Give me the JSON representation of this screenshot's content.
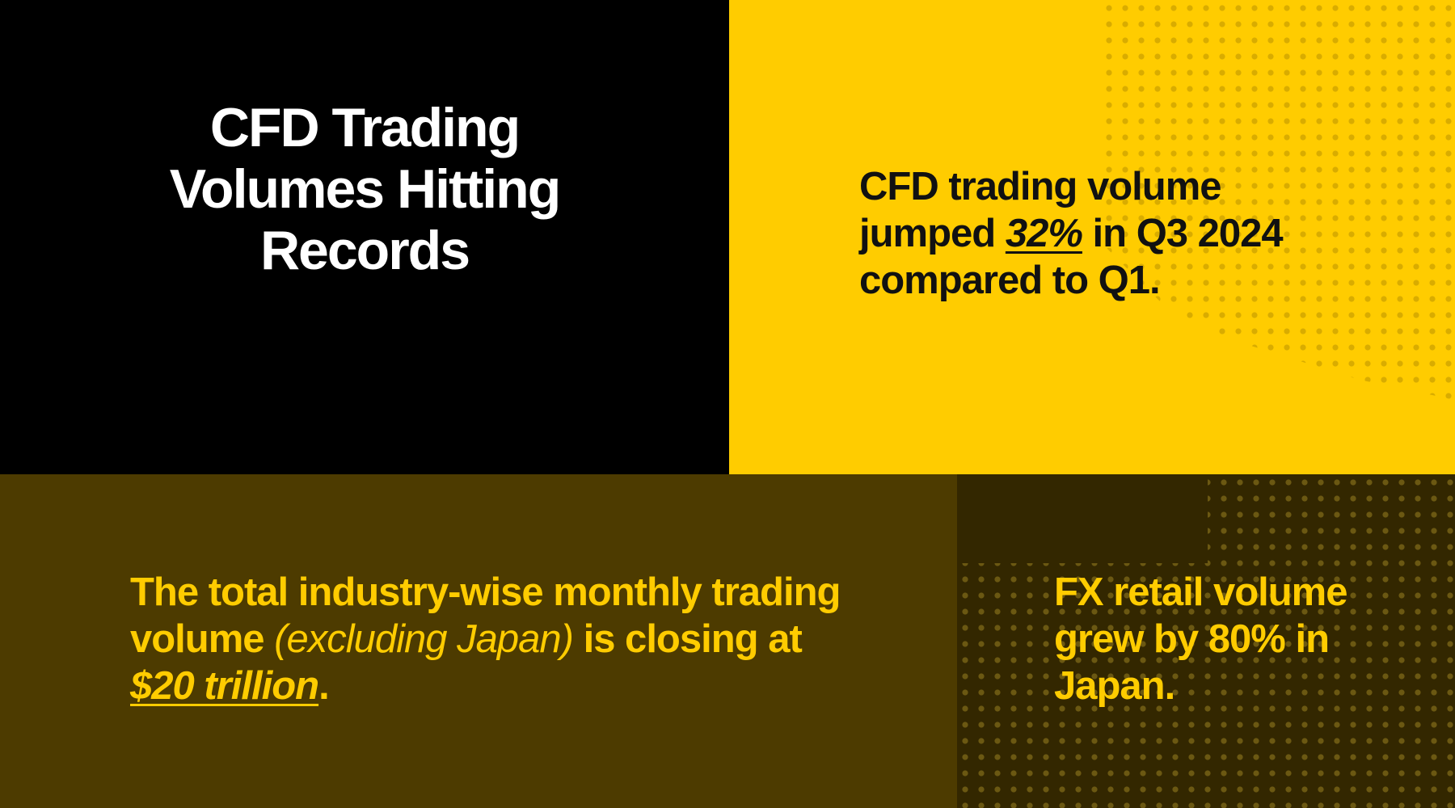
{
  "title": "CFD Trading Volumes Hitting Records",
  "stat_q3": {
    "pre": "CFD trading volume jumped ",
    "highlight": "32%",
    "post": " in Q3 2024 compared to Q1."
  },
  "stat_monthly": {
    "pre": "The total industry-wise monthly trading volume ",
    "aside": "(excluding Japan)",
    "mid": " is closing at ",
    "highlight": "$20 trillion",
    "post": "."
  },
  "stat_japan": {
    "text": "FX retail volume grew by 80% in Japan."
  },
  "colors": {
    "yellow": "#FFCC00",
    "black": "#000000",
    "olive": "#4D3B00",
    "dark_olive": "#332700"
  }
}
